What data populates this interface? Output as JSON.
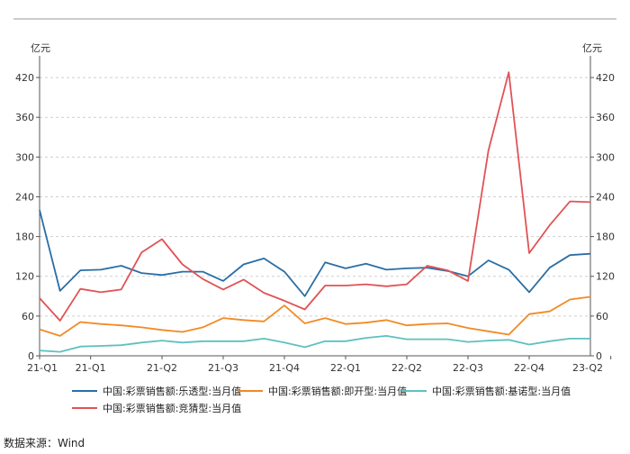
{
  "chart_data": {
    "type": "line",
    "y_unit_left": "亿元",
    "y_unit_right": "亿元",
    "ylim": [
      0,
      450
    ],
    "yticks": [
      0,
      60,
      120,
      180,
      240,
      300,
      360,
      420
    ],
    "x_tick_labels": [
      "21-Q1",
      "21-Q1",
      "21-Q2",
      "21-Q3",
      "21-Q4",
      "22-Q1",
      "22-Q2",
      "22-Q3",
      "22-Q4",
      "23-Q2"
    ],
    "x_tick_indices": [
      0,
      2.5,
      6,
      9,
      12,
      15,
      18,
      21,
      24,
      28
    ],
    "series": [
      {
        "name": "中国:彩票销售额:乐透型:当月值",
        "color": "#2a6ea5",
        "values": [
          220,
          98,
          129,
          130,
          136,
          125,
          122,
          127,
          127,
          113,
          138,
          147,
          127,
          90,
          141,
          132,
          139,
          130,
          132,
          133,
          128,
          120,
          144,
          130,
          96,
          133,
          152,
          154
        ]
      },
      {
        "name": "中国:彩票销售额:即开型:当月值",
        "color": "#f28a25",
        "values": [
          40,
          30,
          51,
          48,
          46,
          43,
          39,
          36,
          43,
          57,
          54,
          52,
          76,
          49,
          57,
          48,
          50,
          54,
          46,
          48,
          49,
          42,
          37,
          32,
          63,
          67,
          85,
          89
        ]
      },
      {
        "name": "中国:彩票销售额:基诺型:当月值",
        "color": "#5ec0c0",
        "values": [
          8,
          6,
          14,
          15,
          16,
          20,
          23,
          20,
          22,
          22,
          22,
          26,
          20,
          13,
          22,
          22,
          27,
          30,
          25,
          25,
          25,
          21,
          23,
          24,
          17,
          22,
          26,
          26
        ]
      },
      {
        "name": "中国:彩票销售额:竞猜型:当月值",
        "color": "#e05355",
        "values": [
          87,
          53,
          101,
          96,
          100,
          156,
          176,
          138,
          116,
          100,
          115,
          95,
          83,
          70,
          106,
          106,
          108,
          105,
          108,
          136,
          129,
          113,
          310,
          428,
          155,
          197,
          233,
          232
        ]
      }
    ],
    "legend_position": "bottom",
    "grid": true
  },
  "source_text": "数据来源：Wind"
}
